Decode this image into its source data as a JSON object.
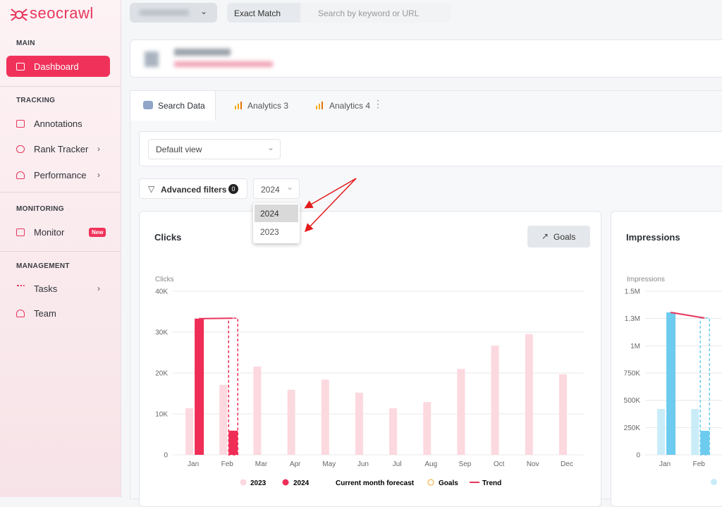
{
  "sidebar": {
    "logo": "seocrawl",
    "sections": [
      {
        "title": "MAIN",
        "items": [
          {
            "label": "Dashboard"
          }
        ]
      },
      {
        "title": "TRACKING",
        "items": [
          {
            "label": "Annotations"
          },
          {
            "label": "Rank Tracker"
          },
          {
            "label": "Performance"
          }
        ]
      },
      {
        "title": "MONITORING",
        "items": [
          {
            "label": "Monitor",
            "badge": "New"
          }
        ]
      },
      {
        "title": "MANAGEMENT",
        "items": [
          {
            "label": "Tasks"
          },
          {
            "label": "Team"
          }
        ]
      }
    ]
  },
  "topbar": {
    "match": "Exact Match",
    "search_placeholder": "Search by keyword or URL"
  },
  "tabs": [
    "Search Data",
    "Analytics 3",
    "Analytics 4"
  ],
  "view_select": "Default view",
  "filters": {
    "label": "Advanced filters",
    "count": 0,
    "year": "2024",
    "year_options": [
      "2024",
      "2023"
    ]
  },
  "charts": [
    {
      "type": "bar",
      "title": "Clicks",
      "button": "Goals",
      "y_label": "Clicks",
      "categories": [
        "Jan",
        "Feb",
        "Mar",
        "Apr",
        "May",
        "Jun",
        "Jul",
        "Aug",
        "Sep",
        "Oct",
        "Nov",
        "Dec"
      ],
      "series": [
        {
          "name": "2023",
          "color": "#fcd9df",
          "values": [
            11400,
            17100,
            21600,
            15900,
            18400,
            15200,
            11400,
            12900,
            21000,
            26700,
            29500,
            19700
          ]
        },
        {
          "name": "2024",
          "color": "#ef2d56",
          "values": [
            33300,
            5900,
            null,
            null,
            null,
            null,
            null,
            null,
            null,
            null,
            null,
            null
          ]
        }
      ],
      "forecast": {
        "name": "Current month forecast",
        "values": [
          null,
          33400,
          null,
          null,
          null,
          null,
          null,
          null,
          null,
          null,
          null,
          null
        ]
      },
      "goals": {
        "name": "Goals"
      },
      "trend": {
        "name": "Trend",
        "color": "#e8365d",
        "values": [
          33300,
          33400,
          null,
          null,
          null,
          null,
          null,
          null,
          null,
          null,
          null,
          null
        ]
      },
      "ylim": [
        0,
        40000
      ],
      "yticks": [
        0,
        {
          "value": 10000,
          "label": "10K"
        },
        {
          "value": 20000,
          "label": "20K"
        },
        {
          "value": 30000,
          "label": "30K"
        },
        {
          "value": 40000,
          "label": "40K"
        }
      ],
      "grid": true
    },
    {
      "type": "bar",
      "title": "Impressions",
      "y_label": "Impressions",
      "categories": [
        "Jan",
        "Feb"
      ],
      "series": [
        {
          "color": "#c9ecf8",
          "values": [
            420000,
            420000
          ]
        },
        {
          "color": "#6ccbef",
          "values": [
            1306000,
            220000
          ]
        }
      ],
      "forecast": {
        "values": [
          null,
          1254000
        ]
      },
      "trend": {
        "color": "#e8365d",
        "values": [
          1306000,
          1254000
        ]
      },
      "ylim": [
        0,
        1500000
      ],
      "yticks": [
        0,
        {
          "value": 250000,
          "label": "250K"
        },
        {
          "value": 500000,
          "label": "500K"
        },
        {
          "value": 750000,
          "label": "750K"
        },
        {
          "value": 1000000,
          "label": "1M"
        },
        {
          "value": 1250000,
          "label": "1.3M"
        },
        {
          "value": 1500000,
          "label": "1.5M"
        }
      ],
      "grid": true
    }
  ]
}
